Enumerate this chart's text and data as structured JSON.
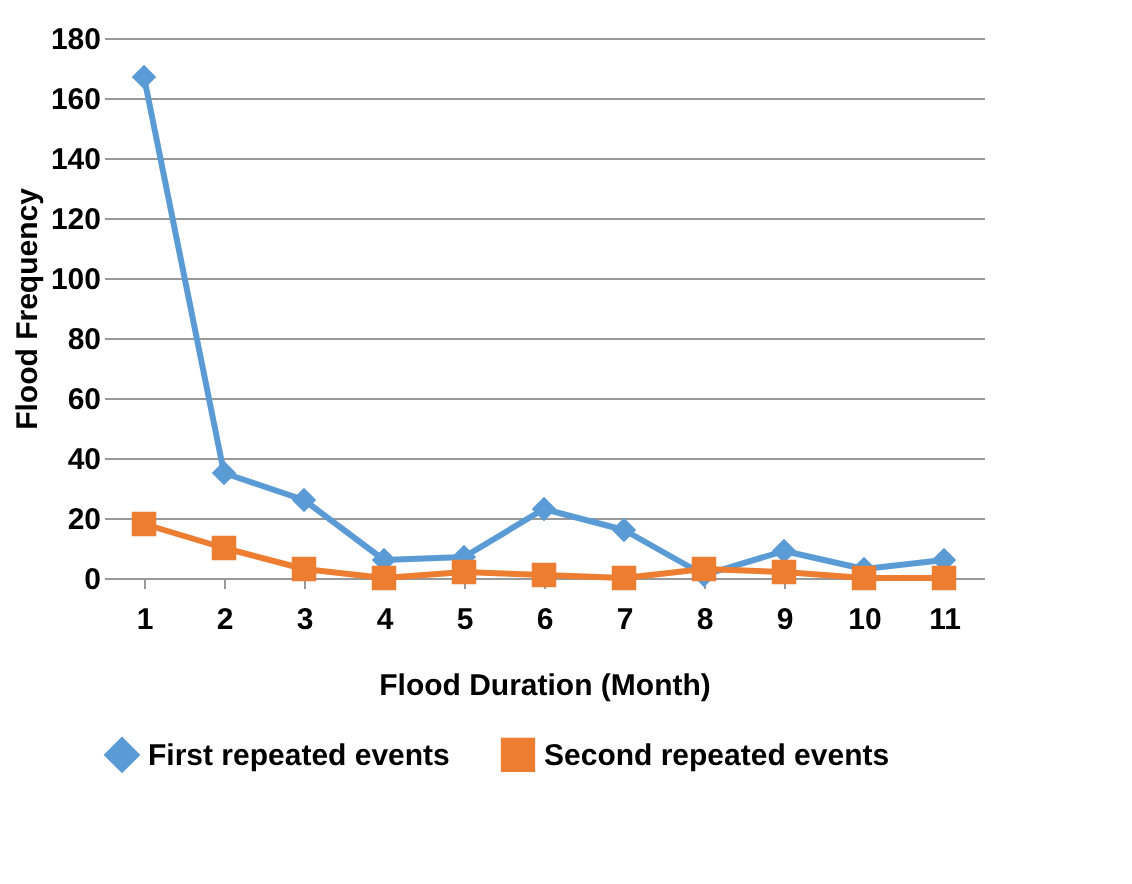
{
  "chart_data": {
    "type": "line",
    "xlabel": "Flood Duration (Month)",
    "ylabel": "Flood Frequency",
    "categories": [
      "1",
      "2",
      "3",
      "4",
      "5",
      "6",
      "7",
      "8",
      "9",
      "10",
      "11"
    ],
    "series": [
      {
        "name": "First repeated events",
        "color": "#5b9bd5",
        "marker": "diamond",
        "values": [
          167,
          35,
          26,
          6,
          7,
          23,
          16,
          1,
          9,
          3,
          6
        ]
      },
      {
        "name": "Second repeated events",
        "color": "#ed7d31",
        "marker": "square",
        "values": [
          18,
          10,
          3,
          0,
          2,
          1,
          0,
          3,
          2,
          0,
          0
        ]
      }
    ],
    "ylim": [
      0,
      180
    ],
    "yticks": [
      0,
      20,
      40,
      60,
      80,
      100,
      120,
      140,
      160,
      180
    ],
    "grid": "y",
    "legend": "bottom",
    "line_style": "solid"
  }
}
